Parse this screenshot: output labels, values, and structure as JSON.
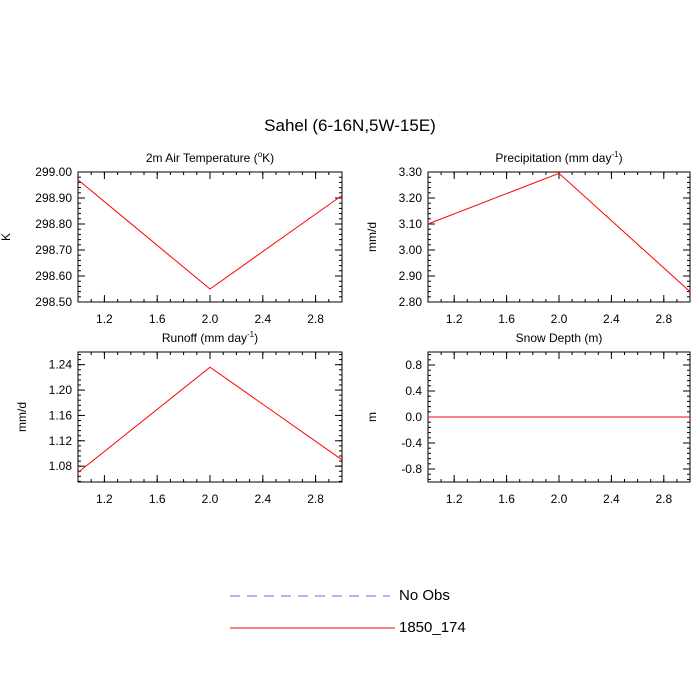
{
  "figure": {
    "title": "Sahel (6-16N,5W-15E)"
  },
  "chart_data": [
    {
      "type": "line",
      "title": "2m Air Temperature (°K)",
      "title_main": "2m Air Temperature (",
      "title_sup": "o",
      "title_end": "K)",
      "xlabel": "",
      "ylabel": "K",
      "xlim": [
        1,
        3
      ],
      "ylim": [
        298.5,
        299.0
      ],
      "xticks": [
        "1.2",
        "1.6",
        "2.0",
        "2.4",
        "2.8"
      ],
      "xtick_values": [
        1.2,
        1.6,
        2.0,
        2.4,
        2.8
      ],
      "yticks": [
        "298.50",
        "298.60",
        "298.70",
        "298.80",
        "298.90",
        "299.00"
      ],
      "ytick_values": [
        298.5,
        298.6,
        298.7,
        298.8,
        298.9,
        299.0
      ],
      "series": [
        {
          "name": "1850_174",
          "x": [
            1,
            2,
            3
          ],
          "y": [
            298.97,
            298.55,
            298.91
          ]
        }
      ]
    },
    {
      "type": "line",
      "title": "Precipitation (mm day-1)",
      "title_main": "Precipitation (mm day",
      "title_sup": "-1",
      "title_end": ")",
      "xlabel": "",
      "ylabel": "mm/d",
      "xlim": [
        1,
        3
      ],
      "ylim": [
        2.8,
        3.3
      ],
      "xticks": [
        "1.2",
        "1.6",
        "2.0",
        "2.4",
        "2.8"
      ],
      "xtick_values": [
        1.2,
        1.6,
        2.0,
        2.4,
        2.8
      ],
      "yticks": [
        "2.80",
        "2.90",
        "3.00",
        "3.10",
        "3.20",
        "3.30"
      ],
      "ytick_values": [
        2.8,
        2.9,
        3.0,
        3.1,
        3.2,
        3.3
      ],
      "series": [
        {
          "name": "1850_174",
          "x": [
            1,
            2,
            3
          ],
          "y": [
            3.1,
            3.295,
            2.84
          ]
        }
      ]
    },
    {
      "type": "line",
      "title": "Runoff (mm day-1)",
      "title_main": "Runoff (mm day",
      "title_sup": "-1",
      "title_end": ")",
      "xlabel": "",
      "ylabel": "mm/d",
      "xlim": [
        1,
        3
      ],
      "ylim": [
        1.055,
        1.26
      ],
      "xticks": [
        "1.2",
        "1.6",
        "2.0",
        "2.4",
        "2.8"
      ],
      "xtick_values": [
        1.2,
        1.6,
        2.0,
        2.4,
        2.8
      ],
      "yticks": [
        "1.08",
        "1.12",
        "1.16",
        "1.20",
        "1.24"
      ],
      "ytick_values": [
        1.08,
        1.12,
        1.16,
        1.2,
        1.24
      ],
      "series": [
        {
          "name": "1850_174",
          "x": [
            1,
            2,
            3
          ],
          "y": [
            1.07,
            1.236,
            1.09
          ]
        }
      ]
    },
    {
      "type": "line",
      "title": "Snow Depth (m)",
      "title_main": "Snow Depth (m)",
      "title_sup": "",
      "title_end": "",
      "xlabel": "",
      "ylabel": "m",
      "xlim": [
        1,
        3
      ],
      "ylim": [
        -1.0,
        1.0
      ],
      "xticks": [
        "1.2",
        "1.6",
        "2.0",
        "2.4",
        "2.8"
      ],
      "xtick_values": [
        1.2,
        1.6,
        2.0,
        2.4,
        2.8
      ],
      "yticks": [
        "-0.8",
        "-0.4",
        "0.0",
        "0.4",
        "0.8"
      ],
      "ytick_values": [
        -0.8,
        -0.4,
        0.0,
        0.4,
        0.8
      ],
      "series": [
        {
          "name": "1850_174",
          "x": [
            1,
            2,
            3
          ],
          "y": [
            0.0,
            0.0,
            0.0
          ]
        }
      ]
    }
  ],
  "legend": {
    "items": [
      {
        "label": "No Obs",
        "color": "#6666ff",
        "style": "dashed"
      },
      {
        "label": "1850_174",
        "color": "#ff0000",
        "style": "solid"
      }
    ]
  },
  "colors": {
    "series": "#ff0000",
    "axis": "#000000"
  }
}
